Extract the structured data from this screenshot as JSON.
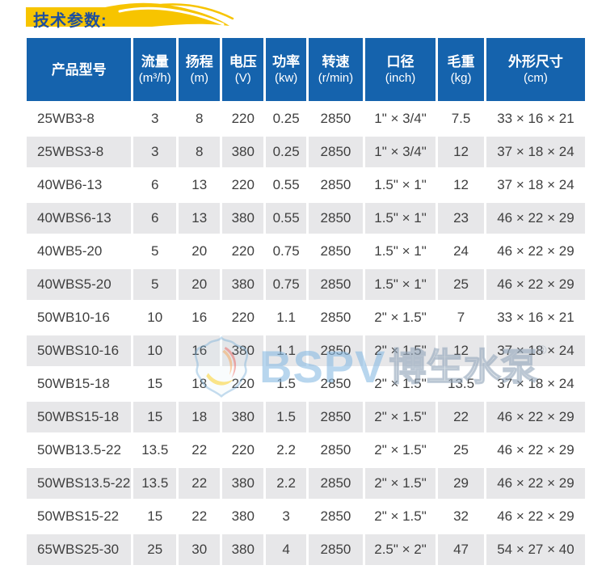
{
  "title": {
    "text": "技术参数:"
  },
  "colors": {
    "banner_yellow": "#f7c400",
    "title_blue": "#1d4e9e",
    "header_bg": "#1563ad",
    "row_alt_bg": "#e7e7e9",
    "cell_text": "#3f3f3f"
  },
  "table": {
    "columns": [
      {
        "label": "产品型号",
        "unit": ""
      },
      {
        "label": "流量",
        "unit": "(m³/h)"
      },
      {
        "label": "扬程",
        "unit": "(m)"
      },
      {
        "label": "电压",
        "unit": "(V)"
      },
      {
        "label": "功率",
        "unit": "(kw)"
      },
      {
        "label": "转速",
        "unit": "(r/min)"
      },
      {
        "label": "口径",
        "unit": "(inch)"
      },
      {
        "label": "毛重",
        "unit": "(kg)"
      },
      {
        "label": "外形尺寸",
        "unit": "(cm)"
      }
    ],
    "rows": [
      [
        "25WB3-8",
        "3",
        "8",
        "220",
        "0.25",
        "2850",
        "1\" × 3/4\"",
        "7.5",
        "33 × 16 × 21"
      ],
      [
        "25WBS3-8",
        "3",
        "8",
        "380",
        "0.25",
        "2850",
        "1\" × 3/4\"",
        "12",
        "37 × 18 × 24"
      ],
      [
        "40WB6-13",
        "6",
        "13",
        "220",
        "0.55",
        "2850",
        "1.5\" × 1\"",
        "12",
        "37 × 18 × 24"
      ],
      [
        "40WBS6-13",
        "6",
        "13",
        "380",
        "0.55",
        "2850",
        "1.5\" × 1\"",
        "23",
        "46 × 22 × 29"
      ],
      [
        "40WB5-20",
        "5",
        "20",
        "220",
        "0.75",
        "2850",
        "1.5\" × 1\"",
        "24",
        "46 × 22 × 29"
      ],
      [
        "40WBS5-20",
        "5",
        "20",
        "380",
        "0.75",
        "2850",
        "1.5\" × 1\"",
        "25",
        "46 × 22 × 29"
      ],
      [
        "50WB10-16",
        "10",
        "16",
        "220",
        "1.1",
        "2850",
        "2\" × 1.5\"",
        "7",
        "33 × 16 × 21"
      ],
      [
        "50WBS10-16",
        "10",
        "16",
        "380",
        "1.1",
        "2850",
        "2\" × 1.5\"",
        "12",
        "37 × 18 × 24"
      ],
      [
        "50WB15-18",
        "15",
        "18",
        "220",
        "1.5",
        "2850",
        "2\" × 1.5\"",
        "13.5",
        "37 × 18 × 24"
      ],
      [
        "50WBS15-18",
        "15",
        "18",
        "380",
        "1.5",
        "2850",
        "2\" × 1.5\"",
        "22",
        "46 × 22 × 29"
      ],
      [
        "50WB13.5-22",
        "13.5",
        "22",
        "220",
        "2.2",
        "2850",
        "2\" × 1.5\"",
        "25",
        "46 × 22 × 29"
      ],
      [
        "50WBS13.5-22",
        "13.5",
        "22",
        "380",
        "2.2",
        "2850",
        "2\" × 1.5\"",
        "29",
        "46 × 22 × 29"
      ],
      [
        "50WBS15-22",
        "15",
        "22",
        "380",
        "3",
        "2850",
        "2\" × 1.5\"",
        "32",
        "46 × 22 × 29"
      ],
      [
        "65WBS25-30",
        "25",
        "30",
        "380",
        "4",
        "2850",
        "2.5\" × 2\"",
        "47",
        "54 × 27 × 40"
      ]
    ]
  },
  "watermark": {
    "brand": "BSPV",
    "brand_cn": "博生水泵",
    "reg": "®"
  }
}
